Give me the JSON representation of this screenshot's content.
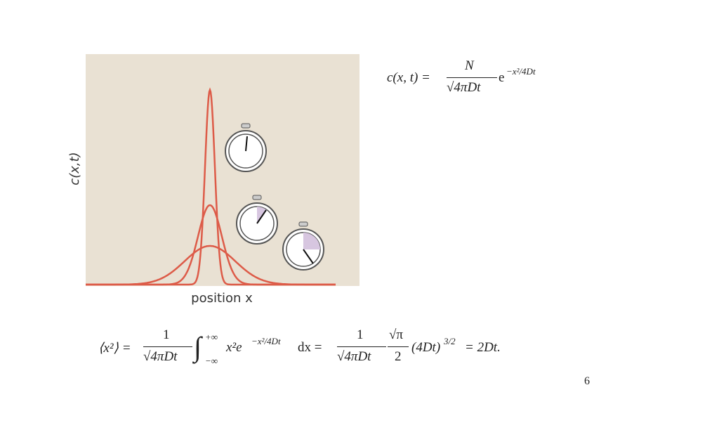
{
  "figure": {
    "y_label": "c(x,t)",
    "x_label": "position x"
  },
  "equation_top": {
    "lhs": "c(x, t) =",
    "numerator": "N",
    "denominator": "√4πDt",
    "base": "e",
    "exponent": "−x²/4Dt"
  },
  "equation_bottom": {
    "lhs": "⟨x²⟩ =",
    "frac1_num": "1",
    "frac1_den": "√4πDt",
    "integral": "∫",
    "upper": "+∞",
    "lower": "−∞",
    "integrand": "x²e",
    "exponent": "−x²/4Dt",
    "dx": "dx =",
    "frac2_num": "1",
    "frac2_den": "√4πDt",
    "frac3_num": "√π",
    "frac3_den": "2",
    "power_base": "(4Dt)",
    "power": "3/2",
    "result": "= 2Dt."
  },
  "page_number": "6"
}
